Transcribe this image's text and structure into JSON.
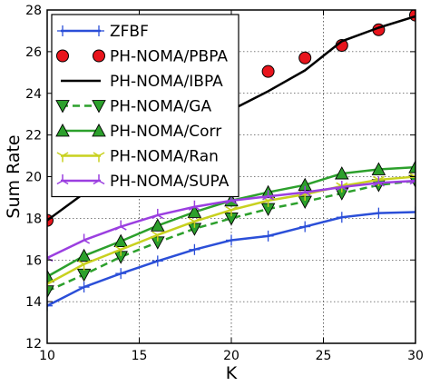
{
  "chart_data": {
    "type": "line",
    "title": "",
    "xlabel": "K",
    "ylabel": "Sum Rate",
    "xlim": [
      10,
      30
    ],
    "ylim": [
      12,
      28
    ],
    "xticks": [
      10,
      15,
      20,
      25,
      30
    ],
    "yticks": [
      12,
      14,
      16,
      18,
      20,
      22,
      24,
      26,
      28
    ],
    "grid": true,
    "legend_position": "upper-left",
    "x": [
      10,
      12,
      14,
      16,
      18,
      20,
      22,
      24,
      26,
      28,
      30
    ],
    "series": [
      {
        "name": "ZFBF",
        "color": "#2b4fd8",
        "line": "solid",
        "marker": "plus",
        "values": [
          13.8,
          14.7,
          15.35,
          15.95,
          16.5,
          16.95,
          17.15,
          17.6,
          18.05,
          18.25,
          18.3
        ]
      },
      {
        "name": "PH-NOMA/PBPA",
        "color": "#e8141c",
        "line": "none",
        "marker": "circle",
        "values": [
          17.9,
          null,
          null,
          null,
          null,
          null,
          25.05,
          25.7,
          26.3,
          27.05,
          27.75
        ]
      },
      {
        "name": "PH-NOMA/IBPA",
        "color": "#000000",
        "line": "solid",
        "marker": "none",
        "values": [
          17.9,
          19.2,
          20.35,
          21.4,
          22.3,
          23.2,
          24.1,
          25.1,
          26.5,
          27.15,
          27.7
        ]
      },
      {
        "name": "PH-NOMA/GA",
        "color": "#2ca02c",
        "line": "dashed",
        "marker": "triangle-down",
        "values": [
          14.5,
          15.3,
          16.15,
          16.85,
          17.5,
          18.0,
          18.45,
          18.8,
          19.2,
          19.6,
          19.8
        ]
      },
      {
        "name": "PH-NOMA/Corr",
        "color": "#2ca02c",
        "line": "solid",
        "marker": "triangle-up",
        "values": [
          15.2,
          16.2,
          16.9,
          17.65,
          18.3,
          18.85,
          19.25,
          19.6,
          20.15,
          20.35,
          20.45
        ]
      },
      {
        "name": "PH-NOMA/Ran",
        "color": "#c8d11f",
        "line": "solid",
        "marker": "tri-down",
        "values": [
          14.85,
          15.8,
          16.5,
          17.2,
          17.85,
          18.4,
          18.85,
          19.15,
          19.55,
          19.85,
          20.0
        ]
      },
      {
        "name": "PH-NOMA/SUPA",
        "color": "#9b3fe0",
        "line": "solid",
        "marker": "tri-up",
        "values": [
          16.1,
          16.95,
          17.6,
          18.15,
          18.55,
          18.85,
          19.05,
          19.25,
          19.5,
          19.7,
          19.8
        ]
      }
    ]
  }
}
